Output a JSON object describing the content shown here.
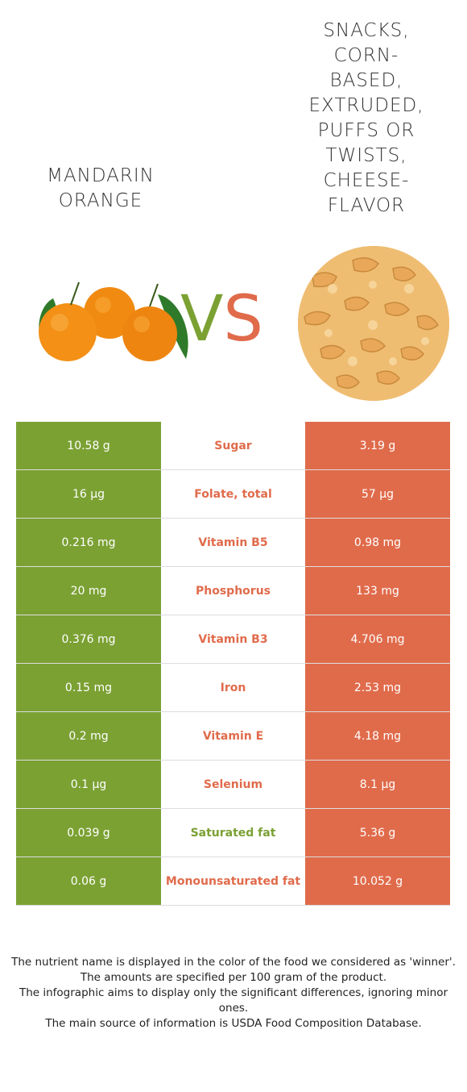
{
  "left_food": {
    "title": "Mandarin orange",
    "color": "#7ba133"
  },
  "right_food": {
    "title": "Snacks, corn-based, extruded, puffs or twists, cheese-flavor",
    "color": "#e06b4b"
  },
  "vs": {
    "v": "V",
    "s": "S"
  },
  "rows": [
    {
      "left": "10.58 g",
      "name": "Sugar",
      "right": "3.19 g",
      "winner": "right"
    },
    {
      "left": "16 µg",
      "name": "Folate, total",
      "right": "57 µg",
      "winner": "right"
    },
    {
      "left": "0.216 mg",
      "name": "Vitamin B5",
      "right": "0.98 mg",
      "winner": "right"
    },
    {
      "left": "20 mg",
      "name": "Phosphorus",
      "right": "133 mg",
      "winner": "right"
    },
    {
      "left": "0.376 mg",
      "name": "Vitamin B3",
      "right": "4.706 mg",
      "winner": "right"
    },
    {
      "left": "0.15 mg",
      "name": "Iron",
      "right": "2.53 mg",
      "winner": "right"
    },
    {
      "left": "0.2 mg",
      "name": "Vitamin E",
      "right": "4.18 mg",
      "winner": "right"
    },
    {
      "left": "0.1 µg",
      "name": "Selenium",
      "right": "8.1 µg",
      "winner": "right"
    },
    {
      "left": "0.039 g",
      "name": "Saturated fat",
      "right": "5.36 g",
      "winner": "left"
    },
    {
      "left": "0.06 g",
      "name": "Monounsaturated fat",
      "right": "10.052 g",
      "winner": "right"
    }
  ],
  "footer": [
    "The nutrient name is displayed in the color of the food we considered as 'winner'.",
    "The amounts are specified per 100 gram of the product.",
    "The infographic aims to display only the significant differences, ignoring minor ones.",
    "The main source of information is USDA Food Composition Database."
  ]
}
